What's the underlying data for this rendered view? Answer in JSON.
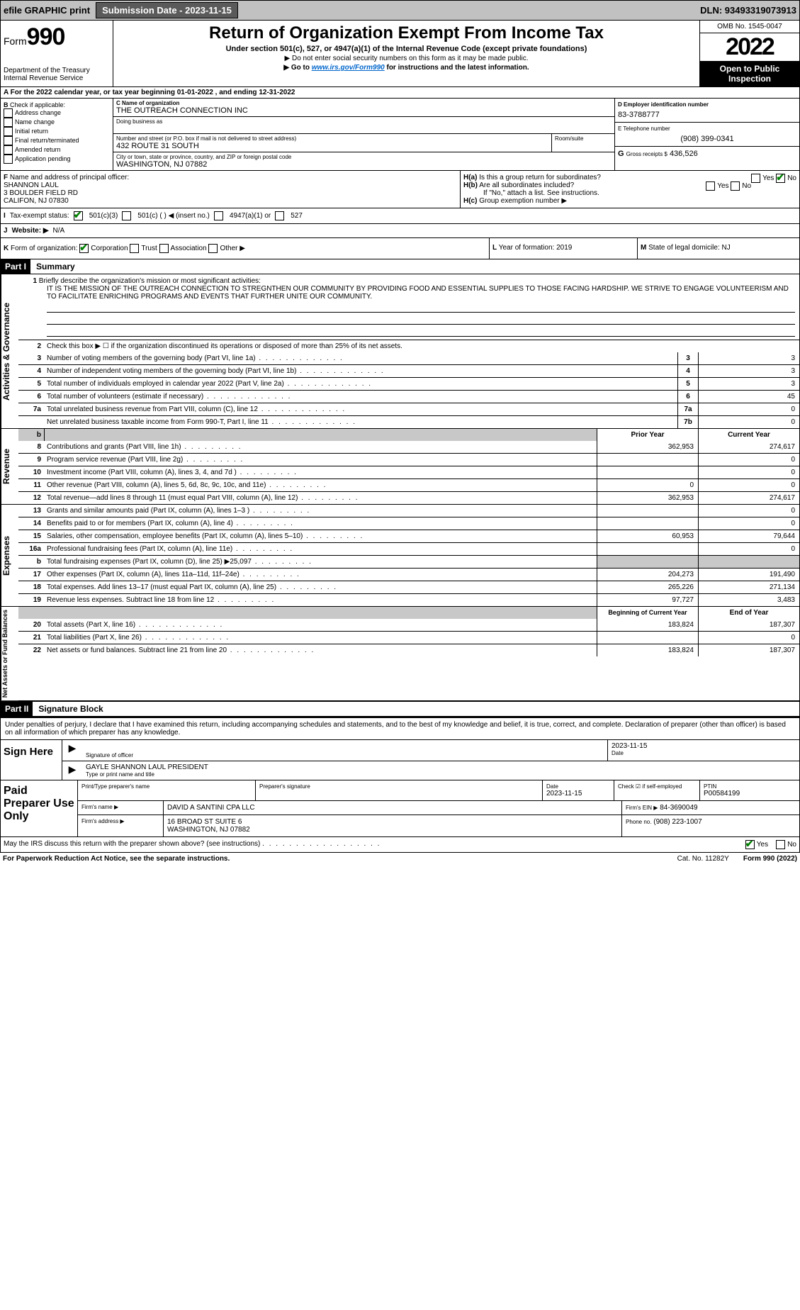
{
  "top": {
    "efile": "efile GRAPHIC print",
    "submission_btn": "Submission Date - 2023-11-15",
    "dln": "DLN: 93493319073913"
  },
  "header": {
    "form_label": "Form",
    "form_number": "990",
    "dept": "Department of the Treasury",
    "irs": "Internal Revenue Service",
    "title": "Return of Organization Exempt From Income Tax",
    "sub1": "Under section 501(c), 527, or 4947(a)(1) of the Internal Revenue Code (except private foundations)",
    "sub_arrow1": "▶ Do not enter social security numbers on this form as it may be made public.",
    "sub_arrow2_pre": "▶ Go to ",
    "sub_arrow2_link": "www.irs.gov/Form990",
    "sub_arrow2_post": " for instructions and the latest information.",
    "omb": "OMB No. 1545-0047",
    "year": "2022",
    "inspect": "Open to Public Inspection"
  },
  "row_a": "A For the 2022 calendar year, or tax year beginning 01-01-2022    , and ending 12-31-2022",
  "section_b": {
    "label": "B",
    "check_label": "Check if applicable:",
    "items": [
      "Address change",
      "Name change",
      "Initial return",
      "Final return/terminated",
      "Amended return",
      "Application pending"
    ]
  },
  "section_c": {
    "label_c": "C Name of organization",
    "org_name": "THE OUTREACH CONNECTION INC",
    "dba_label": "Doing business as",
    "addr_label": "Number and street (or P.O. box if mail is not delivered to street address)",
    "addr": "432 ROUTE 31 SOUTH",
    "room_label": "Room/suite",
    "city_label": "City or town, state or province, country, and ZIP or foreign postal code",
    "city": "WASHINGTON, NJ  07882"
  },
  "section_de": {
    "d_label": "D Employer identification number",
    "ein": "83-3788777",
    "e_label": "E Telephone number",
    "phone": "(908) 399-0341",
    "g_label": "G",
    "g_text": "Gross receipts $",
    "g_val": "436,526"
  },
  "section_f": {
    "label": "F",
    "text": "Name and address of principal officer:",
    "name": "SHANNON LAUL",
    "addr1": "3 BOULDER FIELD RD",
    "addr2": "CALIFON, NJ  07830"
  },
  "section_h": {
    "ha": "H(a)",
    "ha_text": "Is this a group return for subordinates?",
    "hb": "H(b)",
    "hb_text": "Are all subordinates included?",
    "hb_note": "If \"No,\" attach a list. See instructions.",
    "hc": "H(c)",
    "hc_text": "Group exemption number ▶",
    "yes": "Yes",
    "no": "No"
  },
  "tax_status": {
    "label": "I",
    "text": "Tax-exempt status:",
    "opt1": "501(c)(3)",
    "opt2": "501(c) (  ) ◀ (insert no.)",
    "opt3": "4947(a)(1) or",
    "opt4": "527"
  },
  "website": {
    "label": "J",
    "text": "Website: ▶",
    "val": "N/A"
  },
  "kform": {
    "label": "K",
    "text": "Form of organization:",
    "opts": [
      "Corporation",
      "Trust",
      "Association",
      "Other ▶"
    ]
  },
  "lm": {
    "l_label": "L",
    "l_text": "Year of formation:",
    "l_val": "2019",
    "m_label": "M",
    "m_text": "State of legal domicile:",
    "m_val": "NJ"
  },
  "part1": {
    "label": "Part I",
    "title": "Summary",
    "line1_label": "1",
    "line1_text": "Briefly describe the organization's mission or most significant activities:",
    "mission": "IT IS THE MISSION OF THE OUTREACH CONNECTION TO STREGNTHEN OUR COMMUNITY BY PROVIDING FOOD AND ESSENTIAL SUPPLIES TO THOSE FACING HARDSHIP. WE STRIVE TO ENGAGE VOLUNTEERISM AND TO FACILITATE ENRICHING PROGRAMS AND EVENTS THAT FURTHER UNITE OUR COMMUNITY.",
    "vtab_gov": "Activities & Governance",
    "vtab_rev": "Revenue",
    "vtab_exp": "Expenses",
    "vtab_net": "Net Assets or Fund Balances",
    "line2": "Check this box ▶ ☐  if the organization discontinued its operations or disposed of more than 25% of its net assets.",
    "lines_gov": [
      {
        "n": "3",
        "d": "Number of voting members of the governing body (Part VI, line 1a)",
        "box": "3",
        "v": "3"
      },
      {
        "n": "4",
        "d": "Number of independent voting members of the governing body (Part VI, line 1b)",
        "box": "4",
        "v": "3"
      },
      {
        "n": "5",
        "d": "Total number of individuals employed in calendar year 2022 (Part V, line 2a)",
        "box": "5",
        "v": "3"
      },
      {
        "n": "6",
        "d": "Total number of volunteers (estimate if necessary)",
        "box": "6",
        "v": "45"
      },
      {
        "n": "7a",
        "d": "Total unrelated business revenue from Part VIII, column (C), line 12",
        "box": "7a",
        "v": "0"
      },
      {
        "n": "",
        "d": "Net unrelated business taxable income from Form 990-T, Part I, line 11",
        "box": "7b",
        "v": "0"
      }
    ],
    "hdr_prior": "Prior Year",
    "hdr_curr": "Current Year",
    "lines_rev": [
      {
        "n": "8",
        "d": "Contributions and grants (Part VIII, line 1h)",
        "p": "362,953",
        "c": "274,617"
      },
      {
        "n": "9",
        "d": "Program service revenue (Part VIII, line 2g)",
        "p": "",
        "c": "0"
      },
      {
        "n": "10",
        "d": "Investment income (Part VIII, column (A), lines 3, 4, and 7d )",
        "p": "",
        "c": "0"
      },
      {
        "n": "11",
        "d": "Other revenue (Part VIII, column (A), lines 5, 6d, 8c, 9c, 10c, and 11e)",
        "p": "0",
        "c": "0"
      },
      {
        "n": "12",
        "d": "Total revenue—add lines 8 through 11 (must equal Part VIII, column (A), line 12)",
        "p": "362,953",
        "c": "274,617"
      }
    ],
    "lines_exp": [
      {
        "n": "13",
        "d": "Grants and similar amounts paid (Part IX, column (A), lines 1–3 )",
        "p": "",
        "c": "0"
      },
      {
        "n": "14",
        "d": "Benefits paid to or for members (Part IX, column (A), line 4)",
        "p": "",
        "c": "0"
      },
      {
        "n": "15",
        "d": "Salaries, other compensation, employee benefits (Part IX, column (A), lines 5–10)",
        "p": "60,953",
        "c": "79,644"
      },
      {
        "n": "16a",
        "d": "Professional fundraising fees (Part IX, column (A), line 11e)",
        "p": "",
        "c": "0"
      },
      {
        "n": "b",
        "d": "Total fundraising expenses (Part IX, column (D), line 25) ▶25,097",
        "p": "GREY",
        "c": "GREY"
      },
      {
        "n": "17",
        "d": "Other expenses (Part IX, column (A), lines 11a–11d, 11f–24e)",
        "p": "204,273",
        "c": "191,490"
      },
      {
        "n": "18",
        "d": "Total expenses. Add lines 13–17 (must equal Part IX, column (A), line 25)",
        "p": "265,226",
        "c": "271,134"
      },
      {
        "n": "19",
        "d": "Revenue less expenses. Subtract line 18 from line 12",
        "p": "97,727",
        "c": "3,483"
      }
    ],
    "hdr_beg": "Beginning of Current Year",
    "hdr_end": "End of Year",
    "lines_net": [
      {
        "n": "20",
        "d": "Total assets (Part X, line 16)",
        "p": "183,824",
        "c": "187,307"
      },
      {
        "n": "21",
        "d": "Total liabilities (Part X, line 26)",
        "p": "",
        "c": "0"
      },
      {
        "n": "22",
        "d": "Net assets or fund balances. Subtract line 21 from line 20",
        "p": "183,824",
        "c": "187,307"
      }
    ]
  },
  "part2": {
    "label": "Part II",
    "title": "Signature Block",
    "declare": "Under penalties of perjury, I declare that I have examined this return, including accompanying schedules and statements, and to the best of my knowledge and belief, it is true, correct, and complete. Declaration of preparer (other than officer) is based on all information of which preparer has any knowledge.",
    "sign_here": "Sign Here",
    "sig_officer": "Signature of officer",
    "sig_date": "Date",
    "sig_date_val": "2023-11-15",
    "officer_name": "GAYLE SHANNON LAUL  PRESIDENT",
    "officer_label": "Type or print name and title",
    "paid": "Paid Preparer Use Only",
    "prep_name_label": "Print/Type preparer's name",
    "prep_sig_label": "Preparer's signature",
    "prep_date_label": "Date",
    "prep_date": "2023-11-15",
    "prep_check": "Check ☑ if self-employed",
    "ptin_label": "PTIN",
    "ptin": "P00584199",
    "firm_name_label": "Firm's name    ▶",
    "firm_name": "DAVID A SANTINI CPA LLC",
    "firm_ein_label": "Firm's EIN ▶",
    "firm_ein": "84-3690049",
    "firm_addr_label": "Firm's address ▶",
    "firm_addr1": "16 BROAD ST SUITE 6",
    "firm_addr2": "WASHINGTON, NJ  07882",
    "firm_phone_label": "Phone no.",
    "firm_phone": "(908) 223-1007",
    "may_irs": "May the IRS discuss this return with the preparer shown above? (see instructions)",
    "yes": "Yes",
    "no": "No"
  },
  "footer": {
    "pra": "For Paperwork Reduction Act Notice, see the separate instructions.",
    "cat": "Cat. No. 11282Y",
    "form": "Form 990 (2022)"
  }
}
